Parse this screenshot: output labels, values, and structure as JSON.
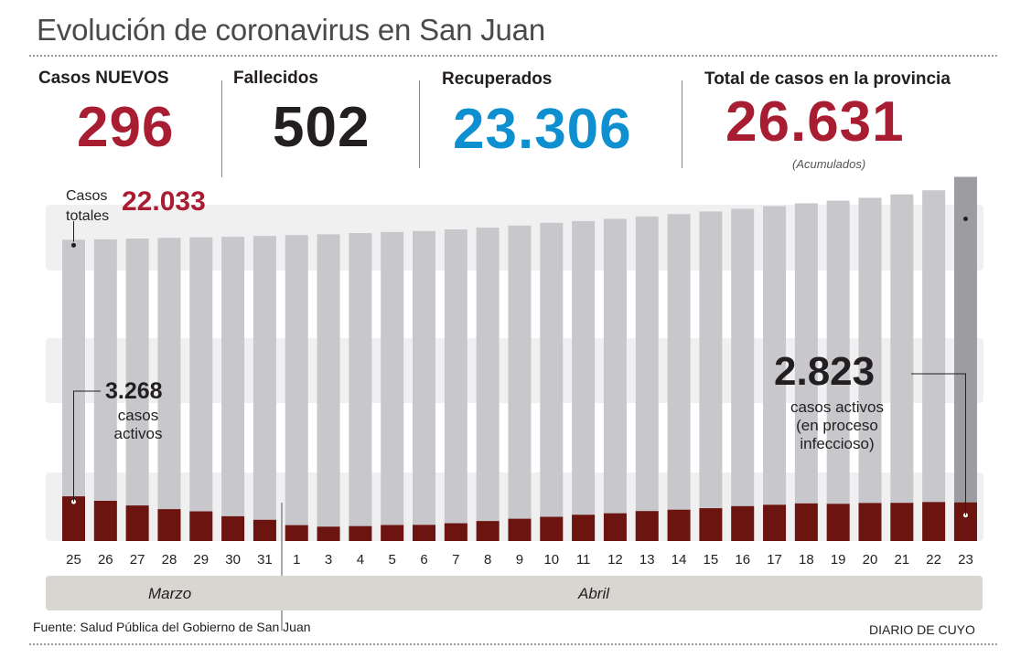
{
  "title": "Evolución de coronavirus en San Juan",
  "stats": {
    "nuevos": {
      "label": "Casos NUEVOS",
      "value": "296",
      "color": "#a81d32"
    },
    "fallecidos": {
      "label": "Fallecidos",
      "value": "502",
      "color": "#231f20"
    },
    "recuperados": {
      "label": "Recuperados",
      "value": "23.306",
      "color": "#0d8fd0"
    },
    "total": {
      "label": "Total de casos en la provincia",
      "value": "26.631",
      "note": "(Acumulados)",
      "color": "#a81d32"
    }
  },
  "annotations": {
    "casos_totales_label_1": "Casos",
    "casos_totales_label_2": "totales",
    "casos_totales_value": "22.033",
    "left_active_value": "3.268",
    "left_active_text_1": "casos",
    "left_active_text_2": "activos",
    "right_active_value": "2.823",
    "right_active_text_1": "casos activos",
    "right_active_text_2": "(en proceso",
    "right_active_text_3": "infeccioso)"
  },
  "months": {
    "march": "Marzo",
    "april": "Abril"
  },
  "footer": {
    "source": "Fuente: Salud Pública del Gobierno de San Juan",
    "brand": "DIARIO DE CUYO"
  },
  "colors": {
    "total_bar": "#c8c7cc",
    "total_bar_last": "#9d9ca1",
    "active_bar": "#6b1410",
    "band": "#f0f0f0"
  },
  "chart_data": {
    "type": "bar",
    "categories": [
      "25",
      "26",
      "27",
      "28",
      "29",
      "30",
      "31",
      "1",
      "3",
      "4",
      "5",
      "6",
      "7",
      "8",
      "9",
      "10",
      "11",
      "12",
      "13",
      "14",
      "15",
      "16",
      "17",
      "18",
      "19",
      "20",
      "21",
      "22",
      "23"
    ],
    "series": [
      {
        "name": "Casos totales",
        "values": [
          22033,
          22060,
          22120,
          22170,
          22210,
          22250,
          22310,
          22370,
          22430,
          22520,
          22600,
          22670,
          22790,
          22920,
          23070,
          23270,
          23400,
          23560,
          23730,
          23910,
          24100,
          24300,
          24490,
          24700,
          24890,
          25100,
          25350,
          25650,
          26631
        ]
      },
      {
        "name": "casos activos",
        "values": [
          3268,
          2940,
          2600,
          2330,
          2170,
          1810,
          1550,
          1160,
          1050,
          1090,
          1170,
          1180,
          1300,
          1460,
          1630,
          1770,
          1920,
          2030,
          2190,
          2290,
          2400,
          2550,
          2650,
          2750,
          2720,
          2780,
          2790,
          2850,
          2823
        ]
      }
    ],
    "ylim": [
      0,
      27000
    ]
  }
}
